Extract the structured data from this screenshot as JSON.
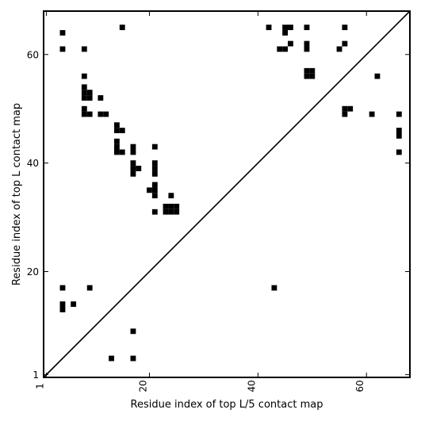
{
  "chart_data": {
    "type": "scatter",
    "title": "",
    "xlabel": "Residue index of top L/5 contact map",
    "ylabel": "Residue index of top L contact map",
    "xlim": [
      0.5,
      68
    ],
    "ylim": [
      0.5,
      68
    ],
    "xticks": [
      1,
      20,
      40,
      60
    ],
    "yticks": [
      1,
      20,
      40,
      60
    ],
    "diagonal": true,
    "marker_color": "#000000",
    "series": [
      {
        "values": [
          [
            4,
            64
          ],
          [
            4,
            61
          ],
          [
            8,
            61
          ],
          [
            15,
            65
          ],
          [
            8,
            56
          ],
          [
            8,
            54
          ],
          [
            8,
            53
          ],
          [
            9,
            53
          ],
          [
            8,
            52
          ],
          [
            9,
            52
          ],
          [
            11,
            52
          ],
          [
            8,
            50
          ],
          [
            8,
            49
          ],
          [
            9,
            49
          ],
          [
            11,
            49
          ],
          [
            12,
            49
          ],
          [
            14,
            47
          ],
          [
            14,
            46
          ],
          [
            15,
            46
          ],
          [
            14,
            44
          ],
          [
            14,
            43
          ],
          [
            14,
            42
          ],
          [
            15,
            42
          ],
          [
            17,
            43
          ],
          [
            17,
            42
          ],
          [
            21,
            43
          ],
          [
            17,
            40
          ],
          [
            17,
            39
          ],
          [
            18,
            39
          ],
          [
            17,
            38
          ],
          [
            21,
            40
          ],
          [
            21,
            39
          ],
          [
            21,
            38
          ],
          [
            20,
            35
          ],
          [
            21,
            36
          ],
          [
            21,
            35
          ],
          [
            21,
            34
          ],
          [
            24,
            34
          ],
          [
            23,
            32
          ],
          [
            24,
            32
          ],
          [
            25,
            32
          ],
          [
            23,
            31
          ],
          [
            24,
            31
          ],
          [
            25,
            31
          ],
          [
            21,
            31
          ],
          [
            42,
            65
          ],
          [
            45,
            65
          ],
          [
            46,
            65
          ],
          [
            45,
            64
          ],
          [
            44,
            61
          ],
          [
            45,
            61
          ],
          [
            46,
            62
          ],
          [
            49,
            65
          ],
          [
            49,
            62
          ],
          [
            49,
            61
          ],
          [
            56,
            65
          ],
          [
            56,
            62
          ],
          [
            55,
            61
          ],
          [
            49,
            57
          ],
          [
            50,
            57
          ],
          [
            49,
            56
          ],
          [
            50,
            56
          ],
          [
            62,
            56
          ],
          [
            56,
            50
          ],
          [
            57,
            50
          ],
          [
            56,
            49
          ],
          [
            61,
            49
          ],
          [
            66,
            49
          ],
          [
            66,
            46
          ],
          [
            66,
            45
          ],
          [
            66,
            42
          ],
          [
            4,
            17
          ],
          [
            9,
            17
          ],
          [
            43,
            17
          ],
          [
            4,
            14
          ],
          [
            6,
            14
          ],
          [
            4,
            13
          ],
          [
            17,
            9
          ],
          [
            13,
            4
          ],
          [
            17,
            4
          ]
        ]
      }
    ]
  }
}
